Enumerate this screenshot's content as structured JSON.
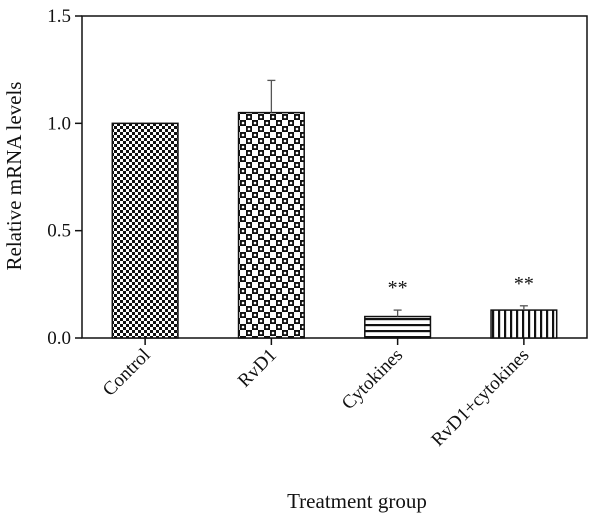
{
  "chart_data": {
    "type": "bar",
    "categories": [
      "Control",
      "RvD1",
      "Cytokines",
      "RvD1+cytokines"
    ],
    "values": [
      1.0,
      1.05,
      0.1,
      0.13
    ],
    "errors": [
      0.0,
      0.15,
      0.03,
      0.02
    ],
    "annotations": [
      "",
      "",
      "**",
      "**"
    ],
    "patterns": [
      "small-checker",
      "large-dots",
      "horizontal-stripes",
      "vertical-stripes"
    ],
    "title": "",
    "xlabel": "Treatment group",
    "ylabel": "Relative mRNA levels",
    "ylim": [
      0,
      1.5
    ],
    "yticks": [
      0.0,
      0.5,
      1.0,
      1.5
    ],
    "ytick_labels": [
      "0.0",
      "0.5",
      "1.0",
      "1.5"
    ],
    "grid": false,
    "colors": {
      "ink": "#111111",
      "background": "#ffffff"
    }
  }
}
